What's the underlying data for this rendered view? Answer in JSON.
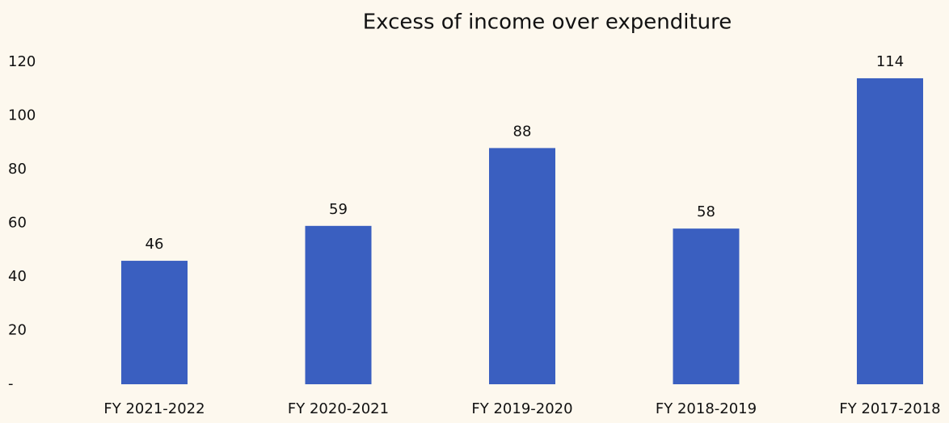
{
  "chart_data": {
    "type": "bar",
    "title": "Excess of income over expenditure",
    "categories": [
      "FY 2021-2022",
      "FY 2020-2021",
      "FY 2019-2020",
      "FY 2018-2019",
      "FY 2017-2018"
    ],
    "values": [
      46,
      59,
      88,
      58,
      114
    ],
    "color": "#3a5fc0",
    "ylim": [
      0,
      120
    ],
    "yticks": [
      {
        "value": 0,
        "label": "-"
      },
      20,
      40,
      60,
      80,
      100,
      120
    ],
    "grid": false
  }
}
